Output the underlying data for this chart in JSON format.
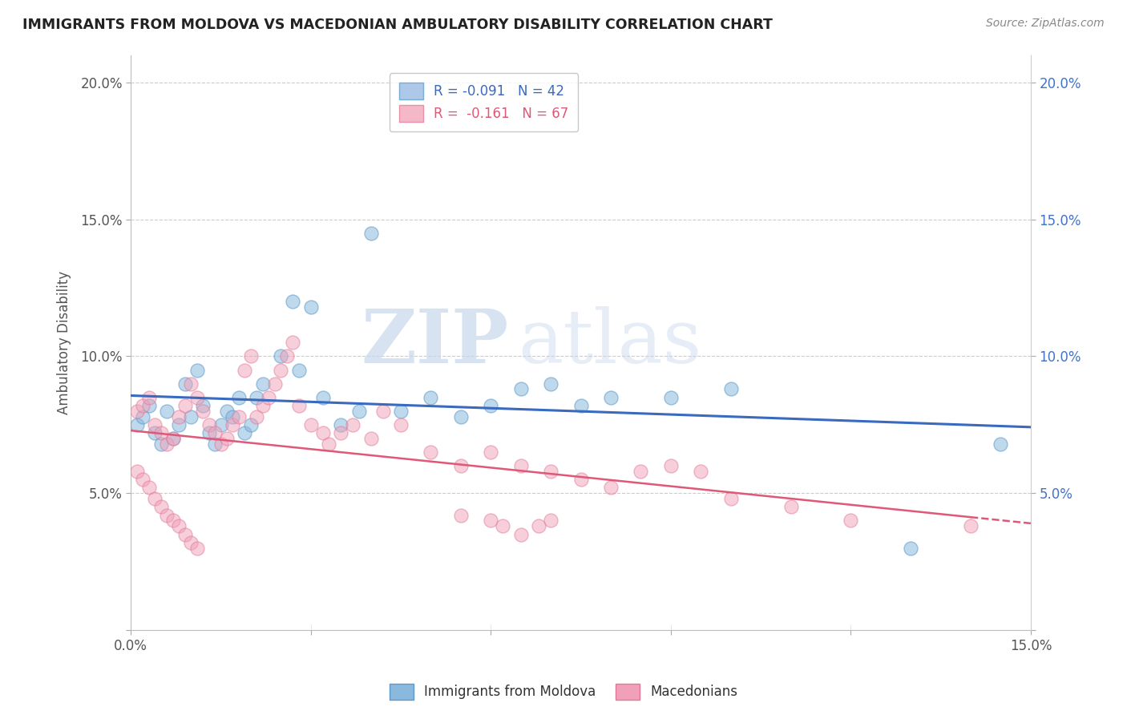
{
  "title": "IMMIGRANTS FROM MOLDOVA VS MACEDONIAN AMBULATORY DISABILITY CORRELATION CHART",
  "source": "Source: ZipAtlas.com",
  "ylabel": "Ambulatory Disability",
  "xlim": [
    0.0,
    0.15
  ],
  "ylim": [
    0.0,
    0.21
  ],
  "xticks": [
    0.0,
    0.03,
    0.06,
    0.09,
    0.12,
    0.15
  ],
  "yticks": [
    0.0,
    0.05,
    0.1,
    0.15,
    0.2
  ],
  "xtick_labels_bottom": [
    "0.0%",
    "",
    "",
    "",
    "",
    "15.0%"
  ],
  "ytick_labels_left": [
    "",
    "5.0%",
    "10.0%",
    "15.0%",
    "20.0%"
  ],
  "ytick_labels_right": [
    "",
    "5.0%",
    "10.0%",
    "15.0%",
    "20.0%"
  ],
  "legend_entries": [
    {
      "label": "R = -0.091   N = 42",
      "facecolor": "#adc8e8",
      "edgecolor": "#7aaed0"
    },
    {
      "label": "R =  -0.161   N = 67",
      "facecolor": "#f5b8c8",
      "edgecolor": "#e890a8"
    }
  ],
  "legend_bottom": [
    "Immigrants from Moldova",
    "Macedonians"
  ],
  "blue_scatter_color": "#8ab8de",
  "blue_scatter_edge": "#6098c8",
  "pink_scatter_color": "#f0a0b8",
  "pink_scatter_edge": "#e07898",
  "blue_line_color": "#3a6abf",
  "pink_line_color": "#e05878",
  "watermark_zip": "ZIP",
  "watermark_atlas": "atlas",
  "blue_scatter_x": [
    0.001,
    0.002,
    0.003,
    0.004,
    0.005,
    0.006,
    0.007,
    0.008,
    0.009,
    0.01,
    0.011,
    0.012,
    0.013,
    0.014,
    0.015,
    0.016,
    0.017,
    0.018,
    0.019,
    0.02,
    0.021,
    0.022,
    0.025,
    0.027,
    0.028,
    0.03,
    0.032,
    0.035,
    0.038,
    0.04,
    0.045,
    0.05,
    0.055,
    0.06,
    0.065,
    0.07,
    0.075,
    0.08,
    0.09,
    0.1,
    0.13,
    0.145
  ],
  "blue_scatter_y": [
    0.075,
    0.078,
    0.082,
    0.072,
    0.068,
    0.08,
    0.07,
    0.075,
    0.09,
    0.078,
    0.095,
    0.082,
    0.072,
    0.068,
    0.075,
    0.08,
    0.078,
    0.085,
    0.072,
    0.075,
    0.085,
    0.09,
    0.1,
    0.12,
    0.095,
    0.118,
    0.085,
    0.075,
    0.08,
    0.145,
    0.08,
    0.085,
    0.078,
    0.082,
    0.088,
    0.09,
    0.082,
    0.085,
    0.085,
    0.088,
    0.03,
    0.068
  ],
  "pink_scatter_x": [
    0.001,
    0.002,
    0.003,
    0.004,
    0.005,
    0.006,
    0.007,
    0.008,
    0.009,
    0.01,
    0.011,
    0.012,
    0.013,
    0.014,
    0.015,
    0.016,
    0.017,
    0.018,
    0.019,
    0.02,
    0.021,
    0.022,
    0.023,
    0.024,
    0.025,
    0.026,
    0.027,
    0.028,
    0.03,
    0.032,
    0.033,
    0.035,
    0.037,
    0.04,
    0.042,
    0.045,
    0.05,
    0.055,
    0.06,
    0.065,
    0.07,
    0.075,
    0.08,
    0.085,
    0.09,
    0.095,
    0.1,
    0.11,
    0.12,
    0.14,
    0.055,
    0.06,
    0.062,
    0.065,
    0.068,
    0.07,
    0.001,
    0.002,
    0.003,
    0.004,
    0.005,
    0.006,
    0.007,
    0.008,
    0.009,
    0.01,
    0.011
  ],
  "pink_scatter_y": [
    0.08,
    0.082,
    0.085,
    0.075,
    0.072,
    0.068,
    0.07,
    0.078,
    0.082,
    0.09,
    0.085,
    0.08,
    0.075,
    0.072,
    0.068,
    0.07,
    0.075,
    0.078,
    0.095,
    0.1,
    0.078,
    0.082,
    0.085,
    0.09,
    0.095,
    0.1,
    0.105,
    0.082,
    0.075,
    0.072,
    0.068,
    0.072,
    0.075,
    0.07,
    0.08,
    0.075,
    0.065,
    0.06,
    0.065,
    0.06,
    0.058,
    0.055,
    0.052,
    0.058,
    0.06,
    0.058,
    0.048,
    0.045,
    0.04,
    0.038,
    0.042,
    0.04,
    0.038,
    0.035,
    0.038,
    0.04,
    0.058,
    0.055,
    0.052,
    0.048,
    0.045,
    0.042,
    0.04,
    0.038,
    0.035,
    0.032,
    0.03
  ]
}
